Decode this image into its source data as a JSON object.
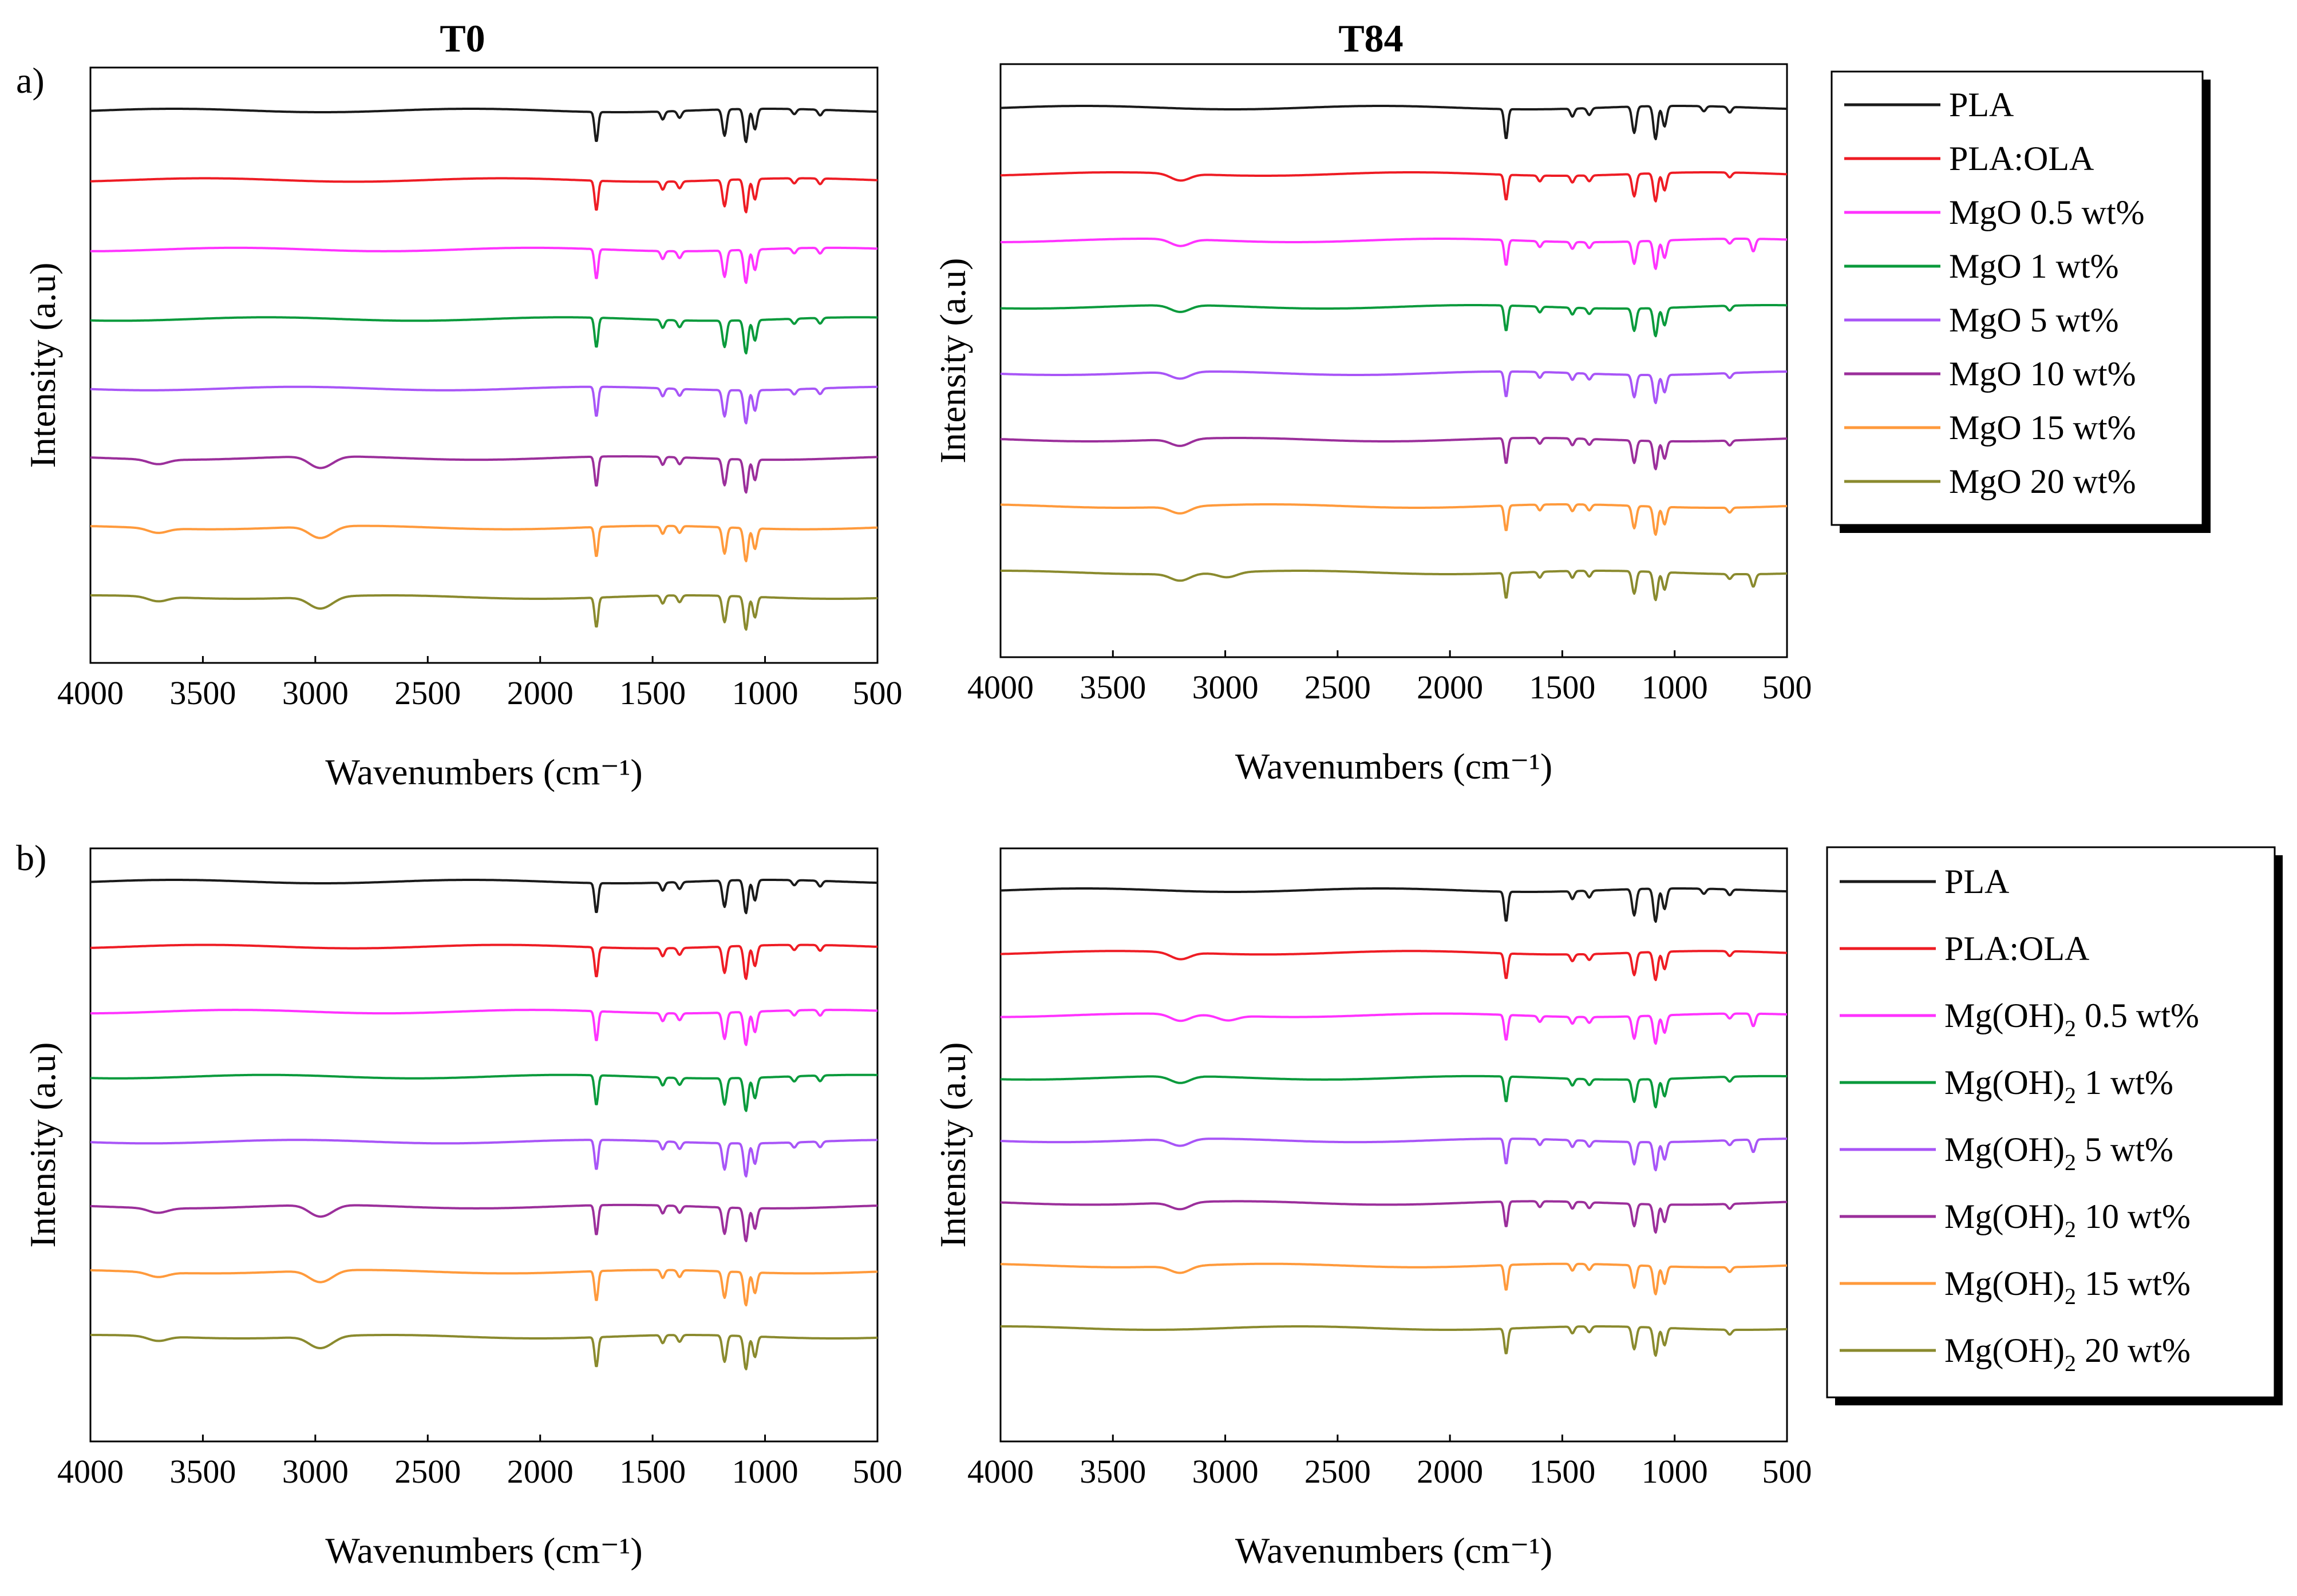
{
  "figure": {
    "column_titles": [
      "T0",
      "T84"
    ],
    "row_labels": [
      "a)",
      "b)"
    ],
    "legend_a": [
      "PLA",
      "PLA:OLA",
      "MgO 0.5 wt%",
      "MgO   1 wt%",
      "MgO   5 wt%",
      "MgO  10 wt%",
      "MgO  15 wt%",
      "MgO  20 wt%"
    ],
    "legend_b": [
      {
        "pre": "PLA",
        "sub": "",
        "post": ""
      },
      {
        "pre": "PLA:OLA",
        "sub": "",
        "post": ""
      },
      {
        "pre": "Mg(OH)",
        "sub": "2",
        "post": " 0.5 wt%"
      },
      {
        "pre": "Mg(OH)",
        "sub": "2",
        "post": "    1 wt%"
      },
      {
        "pre": "Mg(OH)",
        "sub": "2",
        "post": "    5 wt%"
      },
      {
        "pre": "Mg(OH)",
        "sub": "2",
        "post": "  10 wt%"
      },
      {
        "pre": "Mg(OH)",
        "sub": "2",
        "post": "  15 wt%"
      },
      {
        "pre": "Mg(OH)",
        "sub": "2",
        "post": "  20 wt%"
      }
    ],
    "series_colors": [
      "#1a1a1a",
      "#ee1c24",
      "#ff33ff",
      "#0a9a3c",
      "#a855f7",
      "#9b2f9b",
      "#ff9a3c",
      "#8a8a2e"
    ]
  },
  "chart_data": [
    {
      "id": "a-T0",
      "type": "line",
      "title": "T0",
      "panel_label": "a)",
      "xlabel": "Wavenumbers (cm⁻¹)",
      "ylabel": "Intensity (a.u)",
      "xlim": [
        4000,
        500
      ],
      "x_ticks": [
        4000,
        3500,
        3000,
        2500,
        2000,
        1500,
        1000,
        500
      ],
      "x_reversed": true,
      "legend_position": "right, outside",
      "series": [
        {
          "name": "PLA",
          "peaks_cm-1": [
            1750,
            1455,
            1380,
            1180,
            1085,
            1045,
            870,
            755
          ]
        },
        {
          "name": "PLA:OLA",
          "peaks_cm-1": [
            1750,
            1455,
            1380,
            1180,
            1085,
            1045,
            870,
            755
          ]
        },
        {
          "name": "MgO 0.5 wt%",
          "peaks_cm-1": [
            1750,
            1455,
            1380,
            1180,
            1085,
            1045,
            870,
            755
          ]
        },
        {
          "name": "MgO 1 wt%",
          "peaks_cm-1": [
            1750,
            1455,
            1380,
            1180,
            1085,
            1045,
            870,
            755
          ]
        },
        {
          "name": "MgO 5 wt%",
          "peaks_cm-1": [
            1750,
            1455,
            1380,
            1180,
            1085,
            1045,
            870,
            755
          ]
        },
        {
          "name": "MgO 10 wt%",
          "peaks_cm-1": [
            3700,
            2995,
            2945,
            1750,
            1455,
            1380,
            1180,
            1085,
            1045
          ]
        },
        {
          "name": "MgO 15 wt%",
          "peaks_cm-1": [
            3700,
            2995,
            2945,
            1750,
            1455,
            1380,
            1180,
            1085,
            1045
          ]
        },
        {
          "name": "MgO 20 wt%",
          "peaks_cm-1": [
            3700,
            2995,
            2945,
            1750,
            1455,
            1380,
            1180,
            1085,
            1045
          ]
        }
      ]
    },
    {
      "id": "a-T84",
      "type": "line",
      "title": "T84",
      "panel_label": "a)",
      "xlabel": "Wavenumbers (cm⁻¹)",
      "ylabel": "Intensity (a.u)",
      "xlim": [
        4000,
        500
      ],
      "x_ticks": [
        4000,
        3500,
        3000,
        2500,
        2000,
        1500,
        1000,
        500
      ],
      "x_reversed": true,
      "series": [
        {
          "name": "PLA",
          "peaks_cm-1": [
            1750,
            1455,
            1380,
            1180,
            1085,
            1045,
            870,
            755
          ]
        },
        {
          "name": "PLA:OLA",
          "peaks_cm-1": [
            3200,
            1750,
            1600,
            1455,
            1380,
            1180,
            1085,
            1045,
            755
          ]
        },
        {
          "name": "MgO 0.5 wt%",
          "peaks_cm-1": [
            3200,
            1750,
            1600,
            1455,
            1380,
            1180,
            1085,
            1045,
            755,
            650
          ]
        },
        {
          "name": "MgO 1 wt%",
          "peaks_cm-1": [
            3200,
            1750,
            1600,
            1455,
            1380,
            1180,
            1085,
            1045,
            755
          ]
        },
        {
          "name": "MgO 5 wt%",
          "peaks_cm-1": [
            3200,
            1750,
            1600,
            1455,
            1380,
            1180,
            1085,
            1045,
            755
          ]
        },
        {
          "name": "MgO 10 wt%",
          "peaks_cm-1": [
            3200,
            1750,
            1600,
            1455,
            1380,
            1180,
            1085,
            1045,
            755
          ]
        },
        {
          "name": "MgO 15 wt%",
          "peaks_cm-1": [
            3200,
            1750,
            1600,
            1455,
            1380,
            1180,
            1085,
            1045,
            755
          ]
        },
        {
          "name": "MgO 20 wt%",
          "peaks_cm-1": [
            3200,
            2990,
            1750,
            1600,
            1455,
            1380,
            1180,
            1085,
            1045,
            755,
            650
          ]
        }
      ]
    },
    {
      "id": "b-T0",
      "type": "line",
      "title": "T0",
      "panel_label": "b)",
      "xlabel": "Wavenumbers (cm⁻¹)",
      "ylabel": "Intensity (a.u)",
      "xlim": [
        4000,
        500
      ],
      "x_ticks": [
        4000,
        3500,
        3000,
        2500,
        2000,
        1500,
        1000,
        500
      ],
      "x_reversed": true,
      "series": [
        {
          "name": "PLA",
          "peaks_cm-1": [
            1750,
            1455,
            1380,
            1180,
            1085,
            1045,
            870,
            755
          ]
        },
        {
          "name": "PLA:OLA",
          "peaks_cm-1": [
            1750,
            1455,
            1380,
            1180,
            1085,
            1045,
            870,
            755
          ]
        },
        {
          "name": "Mg(OH)2 0.5 wt%",
          "peaks_cm-1": [
            1750,
            1455,
            1380,
            1180,
            1085,
            1045,
            870,
            755
          ]
        },
        {
          "name": "Mg(OH)2 1 wt%",
          "peaks_cm-1": [
            1750,
            1455,
            1380,
            1180,
            1085,
            1045,
            870,
            755
          ]
        },
        {
          "name": "Mg(OH)2 5 wt%",
          "peaks_cm-1": [
            1750,
            1455,
            1380,
            1180,
            1085,
            1045,
            870,
            755
          ]
        },
        {
          "name": "Mg(OH)2 10 wt%",
          "peaks_cm-1": [
            3700,
            2995,
            2945,
            1750,
            1455,
            1380,
            1180,
            1085,
            1045
          ]
        },
        {
          "name": "Mg(OH)2 15 wt%",
          "peaks_cm-1": [
            3700,
            2995,
            2945,
            1750,
            1455,
            1380,
            1180,
            1085,
            1045
          ]
        },
        {
          "name": "Mg(OH)2 20 wt%",
          "peaks_cm-1": [
            3700,
            2995,
            2945,
            1750,
            1455,
            1380,
            1180,
            1085,
            1045
          ]
        }
      ]
    },
    {
      "id": "b-T84",
      "type": "line",
      "title": "T84",
      "panel_label": "b)",
      "xlabel": "Wavenumbers (cm⁻¹)",
      "ylabel": "Intensity (a.u)",
      "xlim": [
        4000,
        500
      ],
      "x_ticks": [
        4000,
        3500,
        3000,
        2500,
        2000,
        1500,
        1000,
        500
      ],
      "x_reversed": true,
      "legend_position": "right, outside",
      "series": [
        {
          "name": "PLA",
          "peaks_cm-1": [
            1750,
            1455,
            1380,
            1180,
            1085,
            1045,
            870,
            755
          ]
        },
        {
          "name": "PLA:OLA",
          "peaks_cm-1": [
            3200,
            1750,
            1455,
            1380,
            1180,
            1085,
            1045,
            755
          ]
        },
        {
          "name": "Mg(OH)2 0.5 wt%",
          "peaks_cm-1": [
            3200,
            2990,
            1750,
            1600,
            1455,
            1380,
            1180,
            1085,
            1045,
            755,
            650
          ]
        },
        {
          "name": "Mg(OH)2 1 wt%",
          "peaks_cm-1": [
            3200,
            1750,
            1455,
            1380,
            1180,
            1085,
            1045,
            755
          ]
        },
        {
          "name": "Mg(OH)2 5 wt%",
          "peaks_cm-1": [
            3200,
            1750,
            1600,
            1455,
            1380,
            1180,
            1085,
            1045,
            755,
            650
          ]
        },
        {
          "name": "Mg(OH)2 10 wt%",
          "peaks_cm-1": [
            3200,
            1750,
            1600,
            1455,
            1380,
            1180,
            1085,
            1045,
            755
          ]
        },
        {
          "name": "Mg(OH)2 15 wt%",
          "peaks_cm-1": [
            3200,
            1750,
            1455,
            1380,
            1180,
            1085,
            1045,
            755
          ]
        },
        {
          "name": "Mg(OH)2 20 wt%",
          "peaks_cm-1": [
            1750,
            1455,
            1380,
            1180,
            1085,
            1045,
            755
          ]
        }
      ]
    }
  ]
}
